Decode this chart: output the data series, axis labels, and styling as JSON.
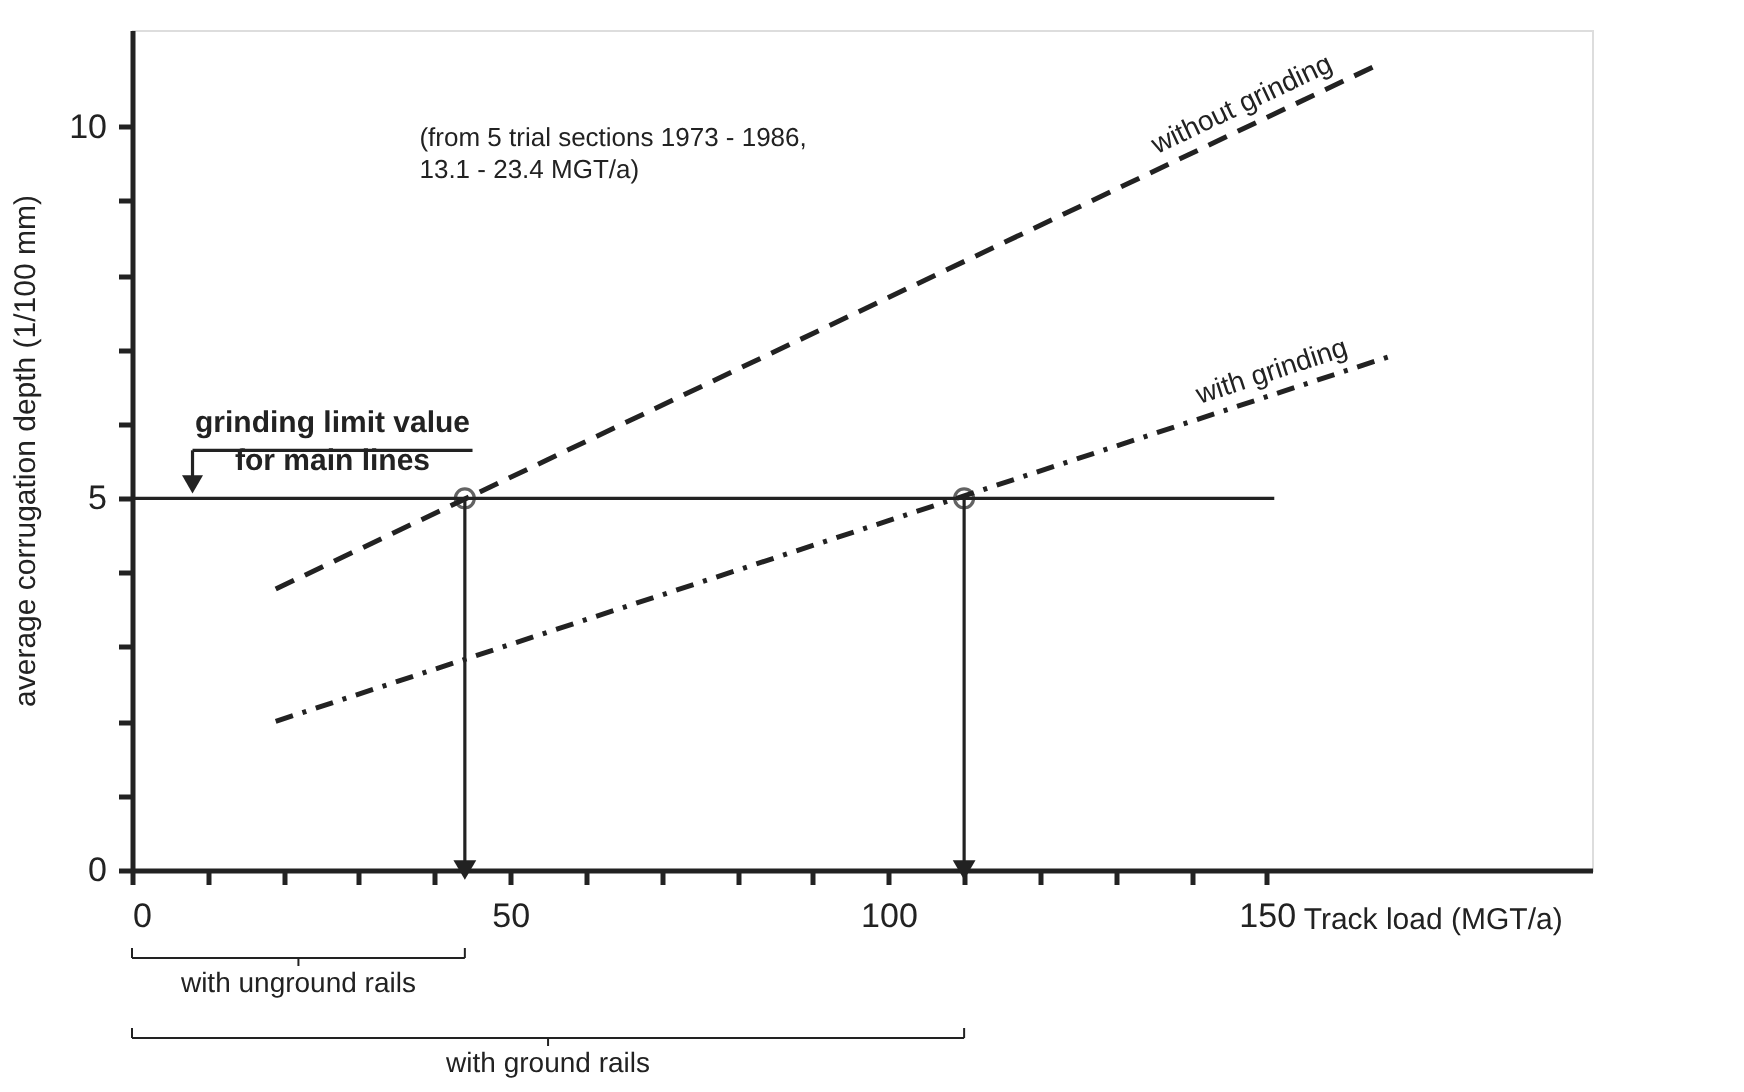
{
  "chart_data": {
    "type": "line",
    "xlabel": "Track load (MGT/a)",
    "ylabel": "average corrugation depth  (1/100 mm)",
    "xlim": [
      0,
      193
    ],
    "ylim": [
      0,
      11.3
    ],
    "xticks": [
      0,
      {
        "value": 10,
        "label": null
      },
      {
        "value": 20,
        "label": null
      },
      {
        "value": 30,
        "label": null
      },
      {
        "value": 40,
        "label": null
      },
      50,
      {
        "value": 60,
        "label": null
      },
      {
        "value": 70,
        "label": null
      },
      {
        "value": 80,
        "label": null
      },
      {
        "value": 90,
        "label": null
      },
      100,
      {
        "value": 110,
        "label": null
      },
      {
        "value": 120,
        "label": null
      },
      {
        "value": 130,
        "label": null
      },
      {
        "value": 140,
        "label": null
      },
      150
    ],
    "yticks": [
      0,
      {
        "value": 1,
        "label": null
      },
      {
        "value": 2,
        "label": null
      },
      {
        "value": 3,
        "label": null
      },
      {
        "value": 4,
        "label": null
      },
      5,
      {
        "value": 6,
        "label": null
      },
      {
        "value": 7,
        "label": null
      },
      {
        "value": 8,
        "label": null
      },
      {
        "value": 9,
        "label": null
      },
      10
    ],
    "grid": false,
    "legend": false,
    "series": [
      {
        "name": "without grinding",
        "line_style": "dashed",
        "color": "#222222",
        "x": [
          19,
          164
        ],
        "values": [
          3.78,
          10.8
        ]
      },
      {
        "name": "with grinding",
        "line_style": "dashdot",
        "color": "#222222",
        "x": [
          19,
          166
        ],
        "values": [
          2.0,
          6.9
        ]
      },
      {
        "line_style": "solid",
        "color": "#222222",
        "x": [
          0,
          151
        ],
        "values": [
          5,
          5
        ]
      },
      {
        "type": "scatter",
        "marker": "circle",
        "color": "#222222",
        "x": [
          44,
          110
        ],
        "values": [
          5,
          5
        ]
      },
      {
        "line_style": "solid",
        "marker": "triangle",
        "color": "#222222",
        "x": [
          44,
          44
        ],
        "values": [
          5,
          0
        ]
      },
      {
        "line_style": "solid",
        "marker": "triangle",
        "color": "#222222",
        "x": [
          110,
          110
        ],
        "values": [
          5,
          0
        ]
      }
    ],
    "annotations": [
      {
        "text": "grinding limit value\nfor main lines",
        "x": 8,
        "y": 5
      },
      "(from 5 trial sections 1973 - 1986,\n13.1 - 23.4 MGT/a)",
      "with unground rails",
      "with ground rails"
    ]
  }
}
